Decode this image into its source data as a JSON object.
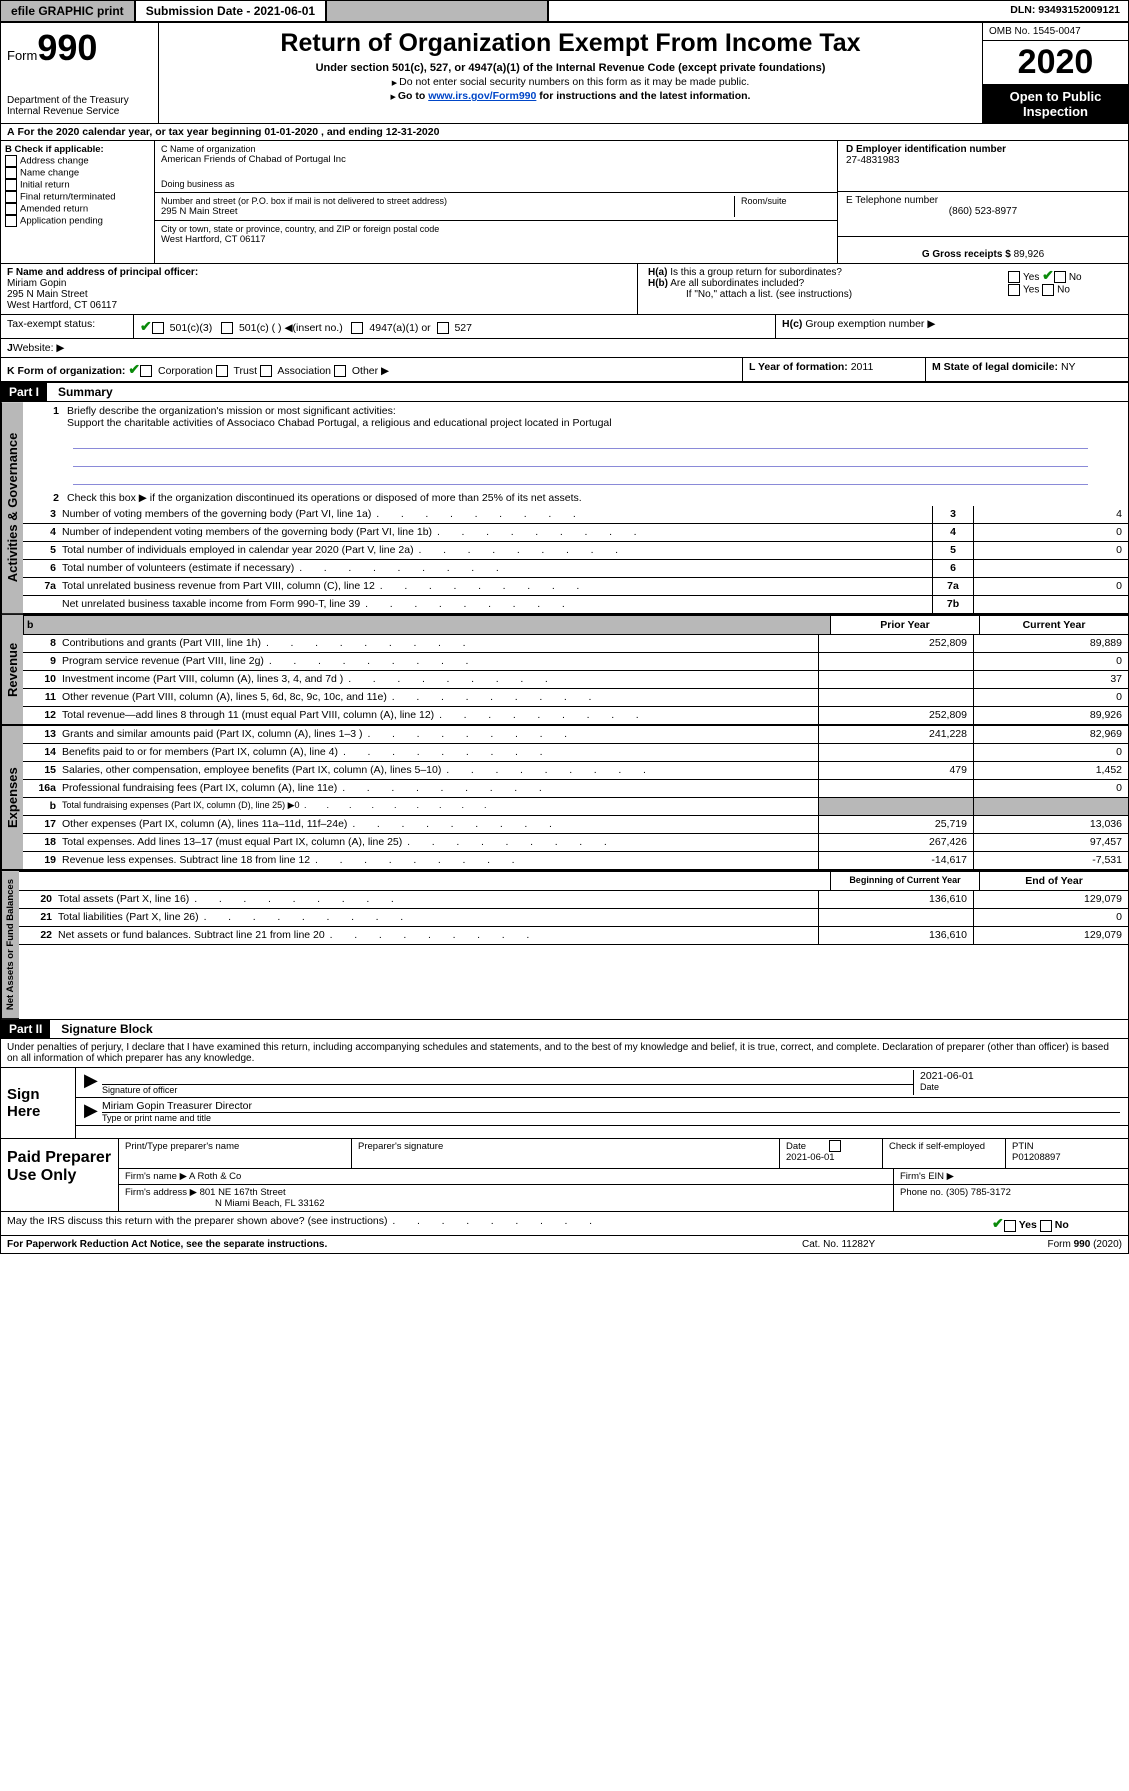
{
  "topbar": {
    "efile": "efile GRAPHIC print",
    "submission_label": "Submission Date - 2021-06-01",
    "dln": "DLN: 93493152009121"
  },
  "header": {
    "form_prefix": "Form",
    "form_no": "990",
    "title": "Return of Organization Exempt From Income Tax",
    "subtitle": "Under section 501(c), 527, or 4947(a)(1) of the Internal Revenue Code (except private foundations)",
    "warn": "Do not enter social security numbers on this form as it may be made public.",
    "instr_prefix": "Go to ",
    "instr_link": "www.irs.gov/Form990",
    "instr_suffix": " for instructions and the latest information.",
    "dept": "Department of the Treasury",
    "irs": "Internal Revenue Service",
    "omb": "OMB No. 1545-0047",
    "year": "2020",
    "open": "Open to Public Inspection"
  },
  "period": {
    "text": "For the 2020 calendar year, or tax year beginning 01-01-2020    , and ending 12-31-2020"
  },
  "block_b": {
    "header": "B Check if applicable:",
    "items": [
      "Address change",
      "Name change",
      "Initial return",
      "Final return/terminated",
      "Amended return",
      "Application pending"
    ]
  },
  "block_c": {
    "label": "C Name of organization",
    "name": "American Friends of Chabad of Portugal Inc",
    "dba_label": "Doing business as",
    "addr_label": "Number and street (or P.O. box if mail is not delivered to street address)",
    "room_label": "Room/suite",
    "addr": "295 N Main Street",
    "city_label": "City or town, state or province, country, and ZIP or foreign postal code",
    "city": "West Hartford, CT  06117"
  },
  "block_d": {
    "label": "D Employer identification number",
    "ein": "27-4831983"
  },
  "block_e": {
    "label": "E Telephone number",
    "phone": "(860) 523-8977"
  },
  "block_g": {
    "label": "G Gross receipts $ ",
    "val": "89,926"
  },
  "block_f": {
    "label": "F  Name and address of principal officer:",
    "name": "Miriam Gopin",
    "addr1": "295 N Main Street",
    "addr2": "West Hartford, CT  06117"
  },
  "block_h": {
    "a_label": "H(a)",
    "a_text": "Is this a group return for subordinates?",
    "b_label": "H(b)",
    "b_text": "Are all subordinates included?",
    "note": "If \"No,\" attach a list. (see instructions)",
    "c_label": "H(c)",
    "c_text": "Group exemption number ▶"
  },
  "tax_status": {
    "label": "Tax-exempt status:",
    "opts": [
      "501(c)(3)",
      "501(c) (  ) ◀(insert no.)",
      "4947(a)(1) or",
      "527"
    ]
  },
  "website": {
    "label": "Website: ▶"
  },
  "block_k": {
    "label": "K Form of organization:",
    "opts": [
      "Corporation",
      "Trust",
      "Association",
      "Other ▶"
    ]
  },
  "block_l": {
    "label": "L Year of formation: ",
    "val": "2011"
  },
  "block_m": {
    "label": "M State of legal domicile: ",
    "val": "NY"
  },
  "part1": {
    "tag": "Part I",
    "title": "Summary",
    "mission_label": "Briefly describe the organization's mission or most significant activities:",
    "mission": "Support the charitable activities of Associaco Chabad Portugal, a religious and educational project located in Portugal",
    "line2": "Check this box ▶       if the organization discontinued its operations or disposed of more than 25% of its net assets.",
    "gov_rows": [
      {
        "n": "3",
        "desc": "Number of voting members of the governing body (Part VI, line 1a)",
        "ln": "3",
        "v": "4"
      },
      {
        "n": "4",
        "desc": "Number of independent voting members of the governing body (Part VI, line 1b)",
        "ln": "4",
        "v": "0"
      },
      {
        "n": "5",
        "desc": "Total number of individuals employed in calendar year 2020 (Part V, line 2a)",
        "ln": "5",
        "v": "0"
      },
      {
        "n": "6",
        "desc": "Total number of volunteers (estimate if necessary)",
        "ln": "6",
        "v": ""
      },
      {
        "n": "7a",
        "desc": "Total unrelated business revenue from Part VIII, column (C), line 12",
        "ln": "7a",
        "v": "0"
      },
      {
        "n": "",
        "desc": "Net unrelated business taxable income from Form 990-T, line 39",
        "ln": "7b",
        "v": ""
      }
    ],
    "prior_hdr": "Prior Year",
    "curr_hdr": "Current Year",
    "revenue": [
      {
        "n": "8",
        "desc": "Contributions and grants (Part VIII, line 1h)",
        "p": "252,809",
        "c": "89,889"
      },
      {
        "n": "9",
        "desc": "Program service revenue (Part VIII, line 2g)",
        "p": "",
        "c": "0"
      },
      {
        "n": "10",
        "desc": "Investment income (Part VIII, column (A), lines 3, 4, and 7d )",
        "p": "",
        "c": "37"
      },
      {
        "n": "11",
        "desc": "Other revenue (Part VIII, column (A), lines 5, 6d, 8c, 9c, 10c, and 11e)",
        "p": "",
        "c": "0"
      },
      {
        "n": "12",
        "desc": "Total revenue—add lines 8 through 11 (must equal Part VIII, column (A), line 12)",
        "p": "252,809",
        "c": "89,926"
      }
    ],
    "expenses": [
      {
        "n": "13",
        "desc": "Grants and similar amounts paid (Part IX, column (A), lines 1–3 )",
        "p": "241,228",
        "c": "82,969"
      },
      {
        "n": "14",
        "desc": "Benefits paid to or for members (Part IX, column (A), line 4)",
        "p": "",
        "c": "0"
      },
      {
        "n": "15",
        "desc": "Salaries, other compensation, employee benefits (Part IX, column (A), lines 5–10)",
        "p": "479",
        "c": "1,452"
      },
      {
        "n": "16a",
        "desc": "Professional fundraising fees (Part IX, column (A), line 11e)",
        "p": "",
        "c": "0"
      },
      {
        "n": "b",
        "desc": "Total fundraising expenses (Part IX, column (D), line 25) ▶0",
        "p": "GRAY",
        "c": "GRAY"
      },
      {
        "n": "17",
        "desc": "Other expenses (Part IX, column (A), lines 11a–11d, 11f–24e)",
        "p": "25,719",
        "c": "13,036"
      },
      {
        "n": "18",
        "desc": "Total expenses. Add lines 13–17 (must equal Part IX, column (A), line 25)",
        "p": "267,426",
        "c": "97,457"
      },
      {
        "n": "19",
        "desc": "Revenue less expenses. Subtract line 18 from line 12",
        "p": "-14,617",
        "c": "-7,531"
      }
    ],
    "beg_hdr": "Beginning of Current Year",
    "end_hdr": "End of Year",
    "netassets": [
      {
        "n": "20",
        "desc": "Total assets (Part X, line 16)",
        "p": "136,610",
        "c": "129,079"
      },
      {
        "n": "21",
        "desc": "Total liabilities (Part X, line 26)",
        "p": "",
        "c": "0"
      },
      {
        "n": "22",
        "desc": "Net assets or fund balances. Subtract line 21 from line 20",
        "p": "136,610",
        "c": "129,079"
      }
    ]
  },
  "vtabs": {
    "gov": "Activities & Governance",
    "rev": "Revenue",
    "exp": "Expenses",
    "net": "Net Assets or Fund Balances"
  },
  "part2": {
    "tag": "Part II",
    "title": "Signature Block",
    "perjury": "Under penalties of perjury, I declare that I have examined this return, including accompanying schedules and statements, and to the best of my knowledge and belief, it is true, correct, and complete. Declaration of preparer (other than officer) is based on all information of which preparer has any knowledge."
  },
  "sign": {
    "label": "Sign Here",
    "sig_label": "Signature of officer",
    "date": "2021-06-01",
    "date_label": "Date",
    "name": "Miriam Gopin  Treasurer Director",
    "name_label": "Type or print name and title"
  },
  "paid": {
    "label": "Paid Preparer Use Only",
    "col1": "Print/Type preparer's name",
    "col2": "Preparer's signature",
    "col3": "Date",
    "col3_val": "2021-06-01",
    "col4": "Check        if self-employed",
    "col5": "PTIN",
    "ptin": "P01208897",
    "firm_label": "Firm's name     ▶",
    "firm": "A Roth & Co",
    "ein_label": "Firm's EIN ▶",
    "addr_label": "Firm's address ▶",
    "addr1": "801 NE 167th Street",
    "addr2": "N Miami Beach, FL  33162",
    "phone_label": "Phone no. ",
    "phone": "(305) 785-3172"
  },
  "discuss": {
    "text": "May the IRS discuss this return with the preparer shown above? (see instructions)"
  },
  "footer": {
    "left": "For Paperwork Reduction Act Notice, see the separate instructions.",
    "mid": "Cat. No. 11282Y",
    "right": "Form 990 (2020)"
  },
  "colors": {
    "gray": "#b8b8b8",
    "link": "#0046c8",
    "green": "#0a8a0a",
    "line_blue": "#8a8ad8"
  }
}
